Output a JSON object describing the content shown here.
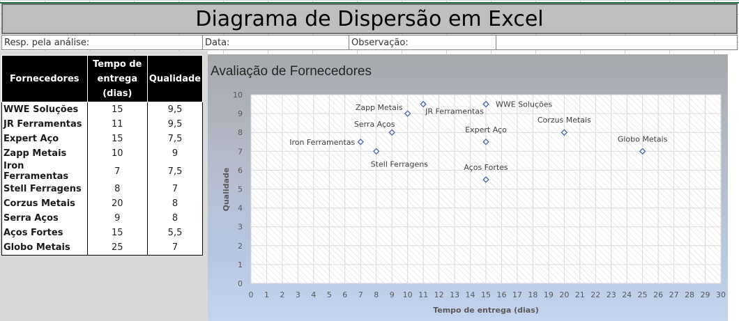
{
  "sheet": {
    "title": "Diagrama de Dispersão em Excel",
    "resp_label": "Resp. pela análise:",
    "data_label": "Data:",
    "obs_label": "Observação:"
  },
  "table": {
    "headers": [
      "Fornecedores",
      "Tempo de entrega (dias)",
      "Qualidade"
    ],
    "rows": [
      {
        "name": "WWE Soluções",
        "time": "15",
        "quality": "9,5"
      },
      {
        "name": "JR Ferramentas",
        "time": "11",
        "quality": "9,5"
      },
      {
        "name": "Expert Aço",
        "time": "15",
        "quality": "7,5"
      },
      {
        "name": "Zapp Metais",
        "time": "10",
        "quality": "9"
      },
      {
        "name": "Iron Ferramentas",
        "time": "7",
        "quality": "7,5"
      },
      {
        "name": "Stell Ferragens",
        "time": "8",
        "quality": "7"
      },
      {
        "name": "Corzus Metais",
        "time": "20",
        "quality": "8"
      },
      {
        "name": "Serra Aços",
        "time": "9",
        "quality": "8"
      },
      {
        "name": "Aços Fortes",
        "time": "15",
        "quality": "5,5"
      },
      {
        "name": "Globo Metais",
        "time": "25",
        "quality": "7"
      }
    ]
  },
  "chart_data": {
    "type": "scatter",
    "title": "Avaliação de Fornecedores",
    "xlabel": "Tempo de entrega (dias)",
    "ylabel": "Qualidade",
    "xlim": [
      0,
      30
    ],
    "ylim": [
      0,
      10
    ],
    "grid": true,
    "marker_color": "#4f6fa8",
    "points": [
      {
        "label": "WWE Soluções",
        "x": 15,
        "y": 9.5
      },
      {
        "label": "JR Ferramentas",
        "x": 11,
        "y": 9.5
      },
      {
        "label": "Expert Aço",
        "x": 15,
        "y": 7.5
      },
      {
        "label": "Zapp Metais",
        "x": 10,
        "y": 9
      },
      {
        "label": "Iron Ferramentas",
        "x": 7,
        "y": 7.5
      },
      {
        "label": "Stell Ferragens",
        "x": 8,
        "y": 7
      },
      {
        "label": "Corzus Metais",
        "x": 20,
        "y": 8
      },
      {
        "label": "Serra Aços",
        "x": 9,
        "y": 8
      },
      {
        "label": "Aços Fortes",
        "x": 15,
        "y": 5.5
      },
      {
        "label": "Globo Metais",
        "x": 25,
        "y": 7
      }
    ]
  }
}
